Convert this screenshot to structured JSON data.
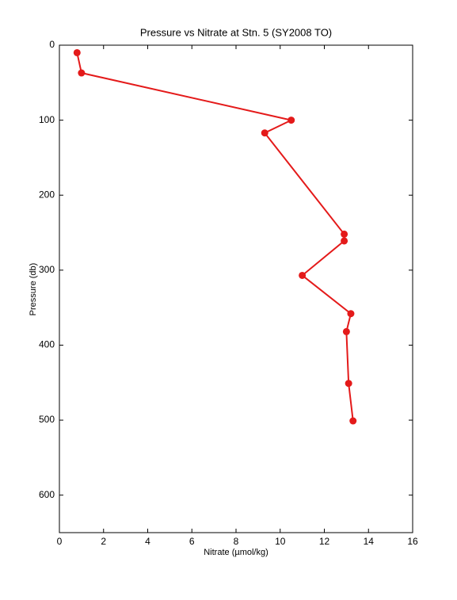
{
  "chart_data": {
    "type": "line",
    "title": "Pressure vs Nitrate at Stn. 5 (SY2008 TO)",
    "x_label": "Nitrate (µmol/kg)",
    "y_label": "Pressure (db)",
    "x": [
      0.8,
      1.0,
      10.5,
      9.3,
      12.9,
      12.9,
      11.0,
      13.2,
      13.0,
      13.1,
      13.3
    ],
    "values": [
      10,
      37,
      100,
      117,
      252,
      261,
      307,
      358,
      382,
      451,
      501
    ],
    "color": "#e41a1a",
    "xlim": [
      0,
      16
    ],
    "xticks": [
      0,
      2,
      4,
      6,
      8,
      10,
      12,
      14,
      16
    ],
    "ylim": [
      0,
      650
    ],
    "yticks": [
      0,
      100,
      200,
      300,
      400,
      500,
      600
    ],
    "y_reversed": true,
    "grid": false,
    "markers": true
  }
}
